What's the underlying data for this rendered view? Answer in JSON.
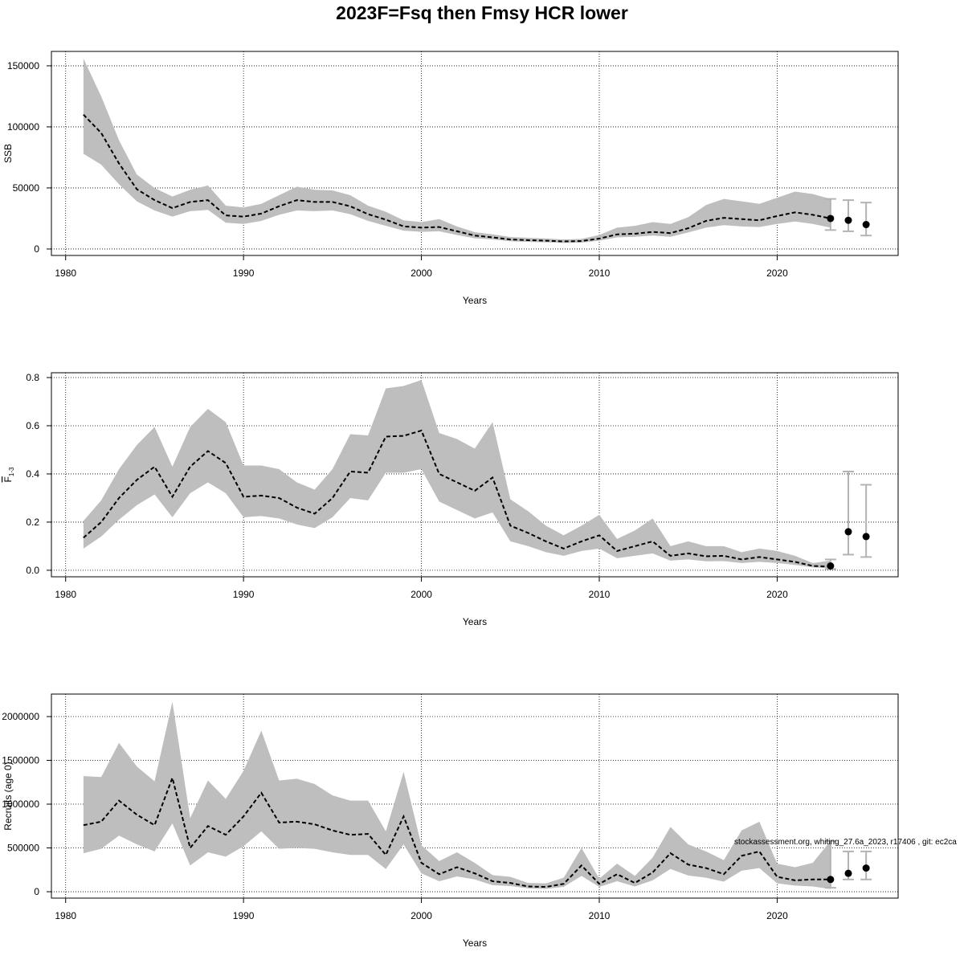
{
  "title": "2023F=Fsq then Fmsy HCR lower",
  "chart_data": [
    {
      "type": "band-line",
      "ylabel": "SSB",
      "xlabel": "Years",
      "xlim": [
        1979.2,
        2026.8
      ],
      "xticks": [
        1980,
        1990,
        2000,
        2010,
        2020
      ],
      "ylim": [
        -5300,
        161800
      ],
      "yticks": [
        0,
        50000,
        100000,
        150000
      ],
      "grid": true,
      "x": [
        1981,
        1982,
        1983,
        1984,
        1985,
        1986,
        1987,
        1988,
        1989,
        1990,
        1991,
        1992,
        1993,
        1994,
        1995,
        1996,
        1997,
        1998,
        1999,
        2000,
        2001,
        2002,
        2003,
        2004,
        2005,
        2006,
        2007,
        2008,
        2009,
        2010,
        2011,
        2012,
        2013,
        2014,
        2015,
        2016,
        2017,
        2018,
        2019,
        2020,
        2021,
        2022,
        2023
      ],
      "values": [
        110000,
        95000,
        70000,
        49000,
        40000,
        33500,
        38500,
        40000,
        27500,
        26500,
        29000,
        35000,
        40000,
        38500,
        38500,
        35000,
        28500,
        24000,
        18500,
        17500,
        18000,
        14500,
        11000,
        9500,
        7800,
        7200,
        6800,
        6200,
        6500,
        8500,
        12000,
        12500,
        14000,
        13000,
        17000,
        23000,
        25500,
        24500,
        23500,
        27000,
        30000,
        28000,
        25000
      ],
      "lower": [
        78000,
        69000,
        53000,
        39000,
        31500,
        26500,
        31000,
        32000,
        21500,
        20500,
        23000,
        28000,
        31500,
        31000,
        31500,
        28500,
        23000,
        19000,
        15000,
        14000,
        14500,
        11500,
        8800,
        7800,
        6300,
        5800,
        5500,
        5000,
        5200,
        6800,
        9500,
        10000,
        11000,
        10000,
        13500,
        17500,
        19500,
        18500,
        18000,
        20500,
        22500,
        20500,
        17500
      ],
      "upper": [
        156000,
        125000,
        89000,
        61000,
        50000,
        43000,
        48500,
        52000,
        35500,
        34000,
        37000,
        44000,
        51000,
        48500,
        48000,
        44000,
        35500,
        30500,
        23500,
        22000,
        24500,
        18500,
        13800,
        12000,
        9800,
        9200,
        8600,
        7800,
        8300,
        11500,
        17500,
        19000,
        22000,
        20500,
        26000,
        36000,
        41000,
        39000,
        37000,
        42000,
        47000,
        45000,
        41000
      ],
      "forecast_x": [
        2023,
        2024,
        2025
      ],
      "forecast_values": [
        25000,
        23500,
        20000
      ],
      "forecast_lower": [
        15500,
        14500,
        11000
      ],
      "forecast_upper": [
        41000,
        40000,
        38000
      ]
    },
    {
      "type": "band-line",
      "ylabel": "F",
      "ylabel_sub": "1-3",
      "xlabel": "Years",
      "xlim": [
        1979.2,
        2026.8
      ],
      "xticks": [
        1980,
        1990,
        2000,
        2010,
        2020
      ],
      "ylim": [
        -0.027,
        0.82
      ],
      "yticks": [
        {
          "value": 0,
          "label": "0.0"
        },
        0.2,
        0.4,
        0.6,
        0.8
      ],
      "grid": true,
      "x": [
        1981,
        1982,
        1983,
        1984,
        1985,
        1986,
        1987,
        1988,
        1989,
        1990,
        1991,
        1992,
        1993,
        1994,
        1995,
        1996,
        1997,
        1998,
        1999,
        2000,
        2001,
        2002,
        2003,
        2004,
        2005,
        2006,
        2007,
        2008,
        2009,
        2010,
        2011,
        2012,
        2013,
        2014,
        2015,
        2016,
        2017,
        2018,
        2019,
        2020,
        2021,
        2022,
        2023
      ],
      "values": [
        0.135,
        0.2,
        0.3,
        0.375,
        0.43,
        0.305,
        0.43,
        0.495,
        0.445,
        0.305,
        0.31,
        0.3,
        0.26,
        0.235,
        0.3,
        0.41,
        0.405,
        0.555,
        0.558,
        0.58,
        0.4,
        0.365,
        0.33,
        0.385,
        0.185,
        0.155,
        0.12,
        0.09,
        0.12,
        0.145,
        0.08,
        0.1,
        0.12,
        0.06,
        0.07,
        0.058,
        0.06,
        0.045,
        0.055,
        0.045,
        0.035,
        0.018,
        0.015
      ],
      "lower": [
        0.09,
        0.14,
        0.21,
        0.27,
        0.315,
        0.22,
        0.32,
        0.365,
        0.32,
        0.22,
        0.225,
        0.215,
        0.19,
        0.175,
        0.22,
        0.3,
        0.29,
        0.405,
        0.405,
        0.42,
        0.285,
        0.25,
        0.215,
        0.24,
        0.12,
        0.1,
        0.075,
        0.06,
        0.08,
        0.09,
        0.05,
        0.06,
        0.07,
        0.04,
        0.045,
        0.037,
        0.038,
        0.03,
        0.035,
        0.03,
        0.022,
        0.012,
        0.008
      ],
      "upper": [
        0.205,
        0.29,
        0.42,
        0.52,
        0.595,
        0.43,
        0.595,
        0.67,
        0.615,
        0.435,
        0.435,
        0.42,
        0.365,
        0.335,
        0.42,
        0.565,
        0.56,
        0.755,
        0.765,
        0.79,
        0.57,
        0.545,
        0.505,
        0.615,
        0.295,
        0.245,
        0.185,
        0.145,
        0.185,
        0.23,
        0.13,
        0.165,
        0.215,
        0.1,
        0.12,
        0.1,
        0.1,
        0.075,
        0.09,
        0.08,
        0.06,
        0.03,
        0.04
      ],
      "forecast_x": [
        2023,
        2024,
        2025
      ],
      "forecast_values": [
        0.018,
        0.16,
        0.14
      ],
      "forecast_lower": [
        0.005,
        0.065,
        0.055
      ],
      "forecast_upper": [
        0.045,
        0.41,
        0.355
      ]
    },
    {
      "type": "band-line",
      "ylabel": "Recruits (age 0)",
      "xlabel": "Years",
      "annotation": "stockassessment.org, whiting_27.6a_2023, r17406 , git: ec2ca",
      "xlim": [
        1979.2,
        2026.8
      ],
      "xticks": [
        1980,
        1990,
        2000,
        2010,
        2020
      ],
      "ylim": [
        -73000,
        2257000
      ],
      "yticks": [
        0,
        500000,
        1000000,
        1500000,
        2000000
      ],
      "grid": true,
      "x": [
        1981,
        1982,
        1983,
        1984,
        1985,
        1986,
        1987,
        1988,
        1989,
        1990,
        1991,
        1992,
        1993,
        1994,
        1995,
        1996,
        1997,
        1998,
        1999,
        2000,
        2001,
        2002,
        2003,
        2004,
        2005,
        2006,
        2007,
        2008,
        2009,
        2010,
        2011,
        2012,
        2013,
        2014,
        2015,
        2016,
        2017,
        2018,
        2019,
        2020,
        2021,
        2022,
        2023
      ],
      "values": [
        760000,
        800000,
        1040000,
        880000,
        760000,
        1300000,
        500000,
        750000,
        650000,
        860000,
        1130000,
        790000,
        800000,
        770000,
        700000,
        650000,
        660000,
        420000,
        860000,
        330000,
        200000,
        280000,
        210000,
        120000,
        100000,
        60000,
        55000,
        90000,
        300000,
        90000,
        200000,
        100000,
        220000,
        440000,
        310000,
        270000,
        200000,
        410000,
        460000,
        170000,
        130000,
        140000,
        140000
      ],
      "lower": [
        440000,
        490000,
        640000,
        540000,
        460000,
        780000,
        300000,
        450000,
        400000,
        520000,
        690000,
        490000,
        500000,
        490000,
        450000,
        420000,
        420000,
        260000,
        540000,
        210000,
        120000,
        175000,
        140000,
        75000,
        65000,
        38000,
        33000,
        55000,
        180000,
        55000,
        120000,
        60000,
        130000,
        260000,
        185000,
        160000,
        115000,
        240000,
        270000,
        95000,
        70000,
        60000,
        30000
      ],
      "upper": [
        1320000,
        1310000,
        1700000,
        1430000,
        1260000,
        2170000,
        840000,
        1270000,
        1060000,
        1380000,
        1840000,
        1270000,
        1290000,
        1230000,
        1100000,
        1040000,
        1040000,
        690000,
        1370000,
        530000,
        350000,
        450000,
        330000,
        190000,
        170000,
        100000,
        95000,
        160000,
        500000,
        150000,
        320000,
        180000,
        390000,
        740000,
        540000,
        460000,
        360000,
        700000,
        800000,
        320000,
        280000,
        330000,
        580000
      ],
      "forecast_x": [
        2023,
        2024,
        2025
      ],
      "forecast_values": [
        140000,
        210000,
        270000
      ],
      "forecast_lower": [
        45000,
        140000,
        140000
      ],
      "forecast_upper": [
        580000,
        460000,
        460000
      ]
    }
  ]
}
